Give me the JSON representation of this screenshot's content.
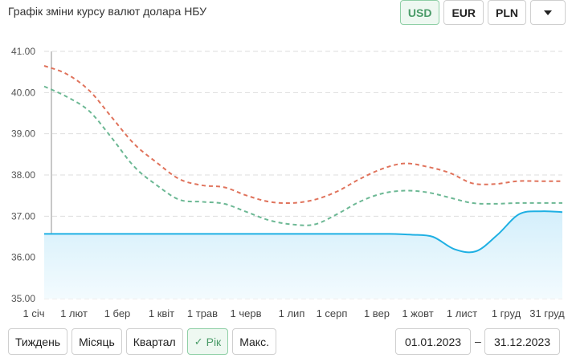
{
  "title": "Графік зміни курсу валют долара НБУ",
  "currency_buttons": [
    {
      "label": "USD",
      "active": true
    },
    {
      "label": "EUR",
      "active": false
    },
    {
      "label": "PLN",
      "active": false
    }
  ],
  "range_buttons": [
    {
      "label": "Тиждень",
      "active": false
    },
    {
      "label": "Місяць",
      "active": false
    },
    {
      "label": "Квартал",
      "active": false
    },
    {
      "label": "Рік",
      "active": true
    },
    {
      "label": "Макс.",
      "active": false
    }
  ],
  "date_from": "01.01.2023",
  "date_separator": "–",
  "date_to": "31.12.2023",
  "chart_data": {
    "type": "line",
    "ylim": [
      35.0,
      41.0
    ],
    "y_ticks": [
      "35.00",
      "36.00",
      "37.00",
      "38.00",
      "39.00",
      "40.00",
      "41.00"
    ],
    "x_ticks": [
      "1 січ",
      "1 лют",
      "1 бер",
      "1 квіт",
      "1 трав",
      "1 черв",
      "1 лип",
      "1 серп",
      "1 вер",
      "1 жовт",
      "1 лист",
      "1 груд",
      "31 груд"
    ],
    "series": [
      {
        "style": "dashed",
        "color": "#e0735c",
        "values": [
          40.65,
          40.45,
          40.05,
          39.4,
          38.75,
          38.3,
          37.9,
          37.75,
          37.7,
          37.5,
          37.35,
          37.32,
          37.4,
          37.6,
          37.9,
          38.15,
          38.28,
          38.2,
          38.05,
          37.8,
          37.78,
          37.85,
          37.85,
          37.85
        ]
      },
      {
        "style": "dashed",
        "color": "#6cb894",
        "values": [
          40.15,
          39.9,
          39.55,
          38.9,
          38.2,
          37.75,
          37.4,
          37.35,
          37.3,
          37.1,
          36.9,
          36.8,
          36.8,
          37.05,
          37.35,
          37.55,
          37.62,
          37.58,
          37.45,
          37.32,
          37.3,
          37.32,
          37.32,
          37.32
        ]
      },
      {
        "style": "solid",
        "color": "#1fb0e3",
        "fill": "#e3f5fd",
        "values": [
          36.57,
          36.57,
          36.57,
          36.57,
          36.57,
          36.57,
          36.57,
          36.57,
          36.57,
          36.57,
          36.57,
          36.57,
          36.57,
          36.57,
          36.57,
          36.57,
          36.57,
          36.55,
          36.5,
          36.2,
          36.15,
          36.55,
          37.05,
          37.12,
          37.1
        ]
      }
    ]
  }
}
